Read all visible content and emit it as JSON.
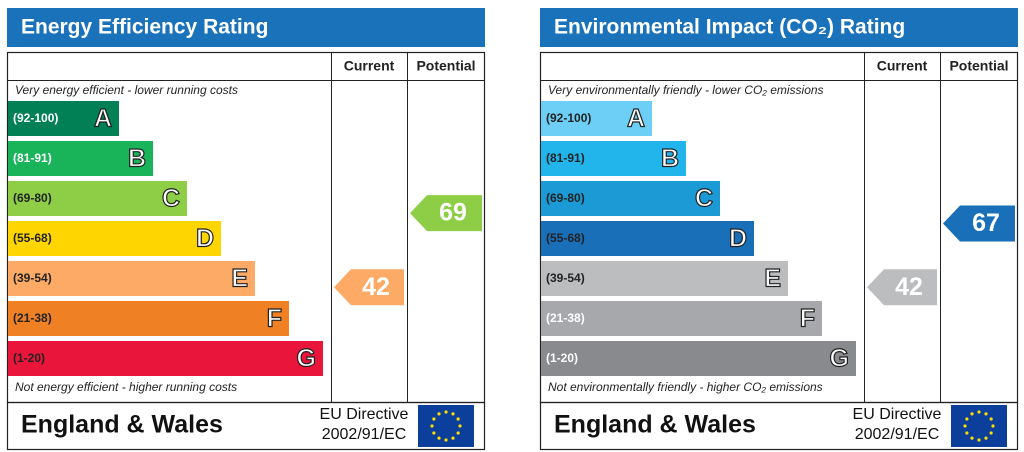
{
  "chart_data": [
    {
      "type": "epc",
      "title": "Energy Efficiency Rating",
      "columns": [
        "Current",
        "Potential"
      ],
      "top_note": "Very energy efficient - lower running costs",
      "bottom_note": "Not energy efficient - higher running costs",
      "bands": [
        {
          "range": "(92-100)",
          "letter": "A",
          "color": "#008054",
          "label_color": "#ffffff"
        },
        {
          "range": "(81-91)",
          "letter": "B",
          "color": "#19b459",
          "label_color": "#ffffff"
        },
        {
          "range": "(69-80)",
          "letter": "C",
          "color": "#8dce46",
          "label_color": "#222222"
        },
        {
          "range": "(55-68)",
          "letter": "D",
          "color": "#ffd500",
          "label_color": "#222222"
        },
        {
          "range": "(39-54)",
          "letter": "E",
          "color": "#fcaa65",
          "label_color": "#222222"
        },
        {
          "range": "(21-38)",
          "letter": "F",
          "color": "#ef8023",
          "label_color": "#222222"
        },
        {
          "range": "(1-20)",
          "letter": "G",
          "color": "#e9153b",
          "label_color": "#222222"
        }
      ],
      "current": 42,
      "potential": 69,
      "region": "England & Wales",
      "directive": [
        "EU Directive",
        "2002/91/EC"
      ]
    },
    {
      "type": "epc",
      "title": "Environmental Impact (CO₂) Rating",
      "columns": [
        "Current",
        "Potential"
      ],
      "top_note": "Very environmentally friendly - lower CO₂ emissions",
      "bottom_note": "Not environmentally friendly - higher CO₂ emissions",
      "bands": [
        {
          "range": "(92-100)",
          "letter": "A",
          "color": "#6dcff6",
          "label_color": "#222222"
        },
        {
          "range": "(81-91)",
          "letter": "B",
          "color": "#22b5ec",
          "label_color": "#222222"
        },
        {
          "range": "(69-80)",
          "letter": "C",
          "color": "#1b9ad6",
          "label_color": "#222222"
        },
        {
          "range": "(55-68)",
          "letter": "D",
          "color": "#1a6fb9",
          "label_color": "#222222"
        },
        {
          "range": "(39-54)",
          "letter": "E",
          "color": "#bbbdbf",
          "label_color": "#222222"
        },
        {
          "range": "(21-38)",
          "letter": "F",
          "color": "#a6a8ab",
          "label_color": "#ffffff"
        },
        {
          "range": "(1-20)",
          "letter": "G",
          "color": "#888a8d",
          "label_color": "#ffffff"
        }
      ],
      "current": 42,
      "potential": 67,
      "region": "England & Wales",
      "directive": [
        "EU Directive",
        "2002/91/EC"
      ]
    }
  ]
}
